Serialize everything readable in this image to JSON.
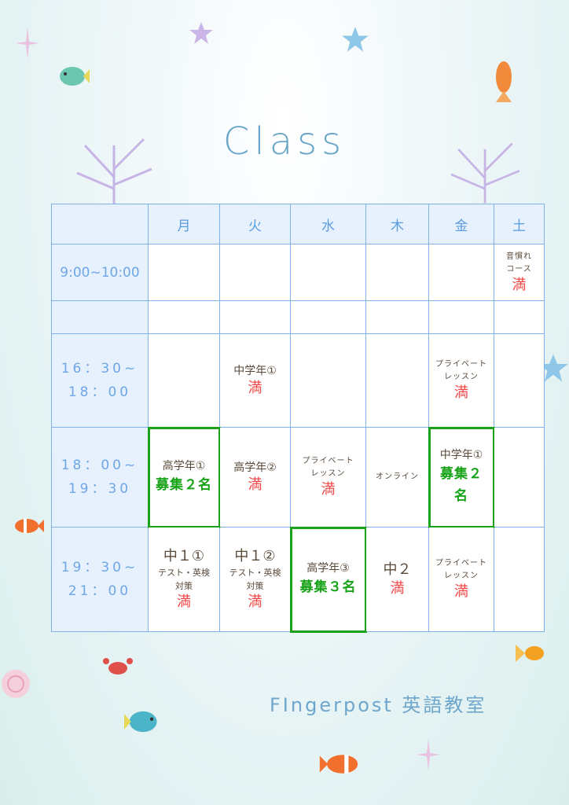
{
  "title": "Class",
  "footer": "FIngerpost 英語教室",
  "colors": {
    "grid": "#7fb1ea",
    "header_bg": "#e6f1fd",
    "full": "#f04848",
    "open": "#17a317",
    "title": "#6aa6c8"
  },
  "days": [
    "月",
    "火",
    "水",
    "木",
    "金",
    "土"
  ],
  "rows": [
    {
      "time": "9:00~10:00",
      "cells": [
        {},
        {},
        {},
        {},
        {},
        {
          "label": "音慣れ コース",
          "size": "small",
          "status": "満"
        }
      ]
    },
    {
      "time": "",
      "cells": [
        {},
        {},
        {},
        {},
        {},
        {}
      ]
    },
    {
      "time": "16：30~ 18：00",
      "cells": [
        {},
        {
          "label": "中学年①",
          "status": "満"
        },
        {},
        {},
        {
          "label": "プライベート レッスン",
          "size": "small",
          "status": "満"
        },
        {}
      ]
    },
    {
      "time": "18：00~ 19：30",
      "cells": [
        {
          "label": "高学年①",
          "status": "募集２名",
          "open": true
        },
        {
          "label": "高学年②",
          "status": "満"
        },
        {
          "label": "プライベート レッスン",
          "size": "small",
          "status": "満"
        },
        {
          "label": "オンライン",
          "size": "small"
        },
        {
          "label": "中学年①",
          "status": "募集２ 名",
          "open": true
        },
        {}
      ]
    },
    {
      "time": "19：30~ 21：00",
      "cells": [
        {
          "label": "中１①",
          "size": "big",
          "sub": "テスト・英検 対策",
          "status": "満"
        },
        {
          "label": "中１②",
          "size": "big",
          "sub": "テスト・英検 対策",
          "status": "満"
        },
        {
          "label": "高学年③",
          "status": "募集３名",
          "open": true
        },
        {
          "label": "中２",
          "size": "big",
          "status": "満"
        },
        {
          "label": "プライベート レッスン",
          "size": "small",
          "status": "満"
        },
        {}
      ]
    }
  ],
  "decorations": [
    "starfish-icon",
    "tropical-fish-icon",
    "clownfish-icon",
    "crab-icon",
    "seashell-icon",
    "goldfish-icon",
    "coral-icon",
    "sparkle-icon"
  ]
}
